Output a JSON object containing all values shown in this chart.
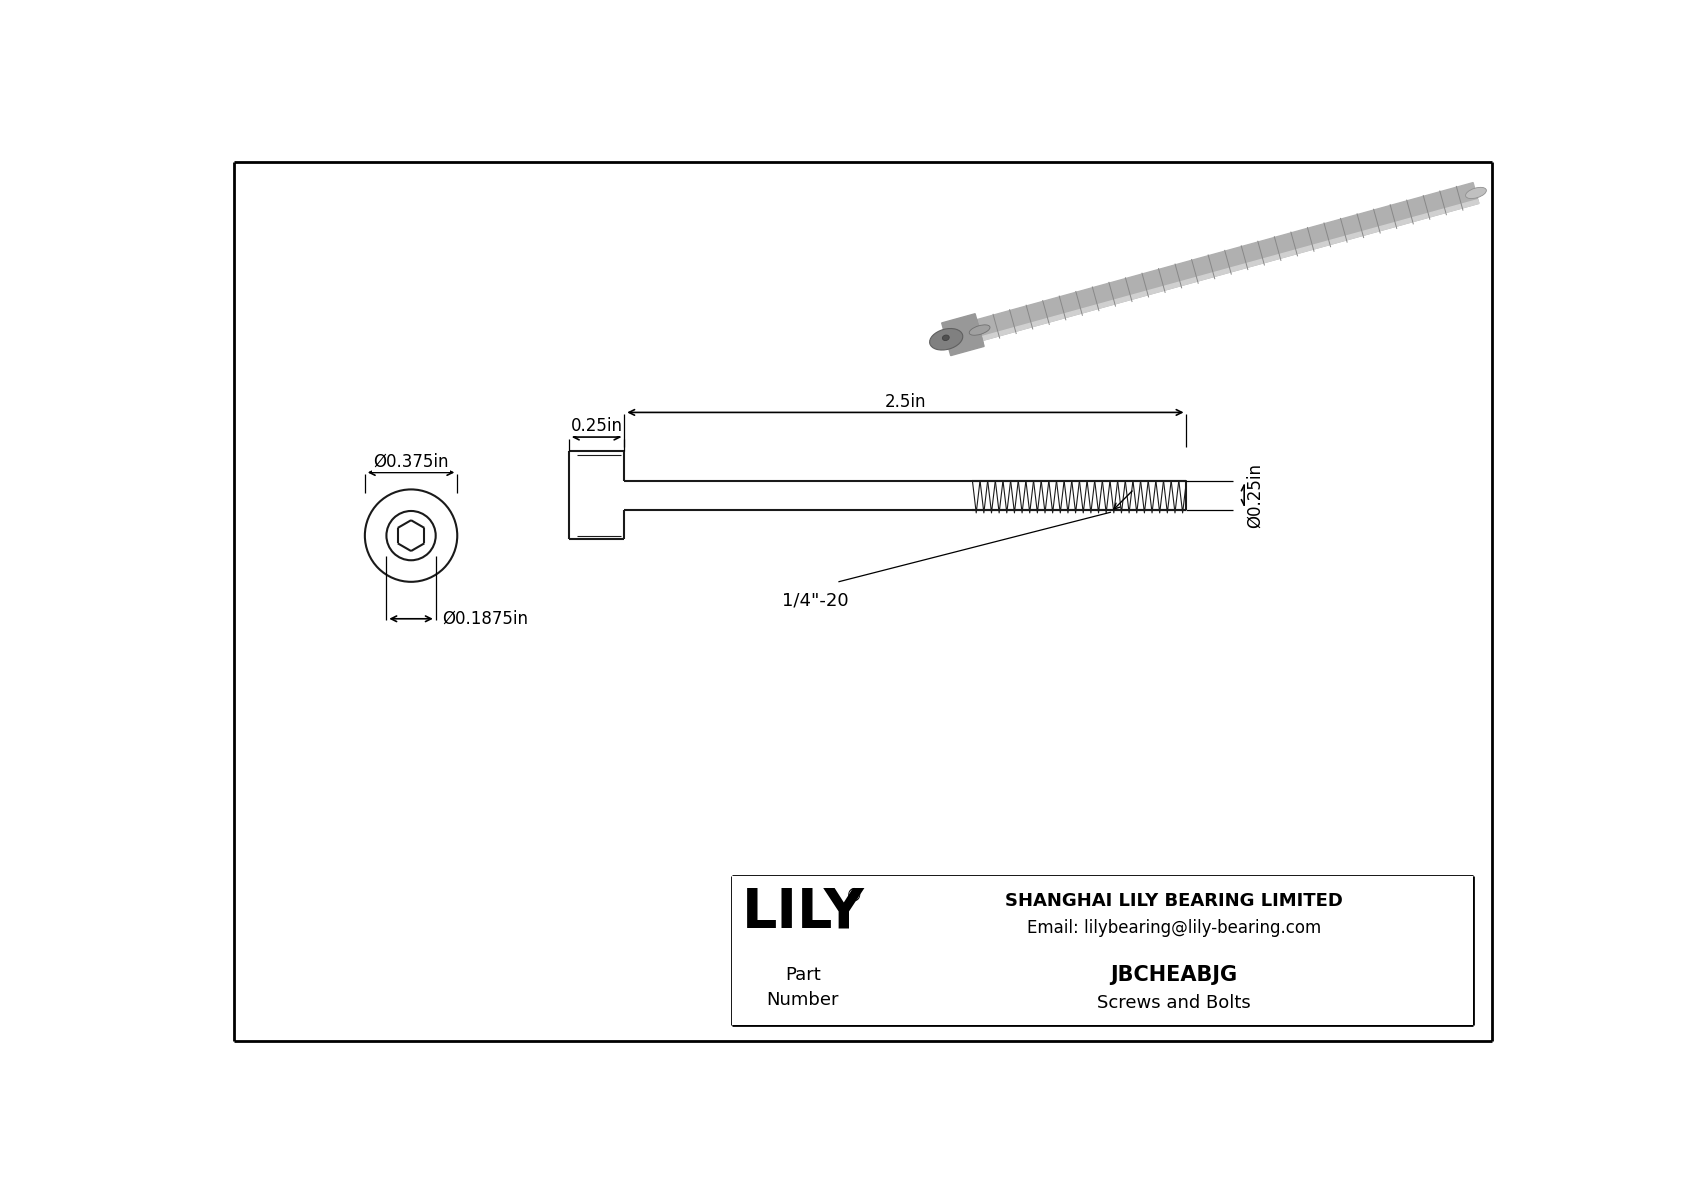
{
  "bg_color": "#ffffff",
  "line_color": "#000000",
  "draw_color": "#1a1a1a",
  "dim_color": "#000000",
  "part_number": "JBCHEABJG",
  "part_type": "Screws and Bolts",
  "company_name": "SHANGHAI LILY BEARING LIMITED",
  "email": "Email: lilybearing@lily-bearing.com",
  "logo_text": "LILY",
  "dim_head_diameter": "Ø0.375in",
  "dim_shaft_diameter": "Ø0.1875in",
  "dim_head_length": "0.25in",
  "dim_total_length": "2.5in",
  "dim_thread_diameter": "Ø0.25in",
  "dim_thread_label": "1/4\"-20",
  "screw_3d_color_body": "#a8a8a8",
  "screw_3d_color_dark": "#888888",
  "screw_3d_color_light": "#c8c8c8",
  "screw_3d_color_thread": "#909090"
}
